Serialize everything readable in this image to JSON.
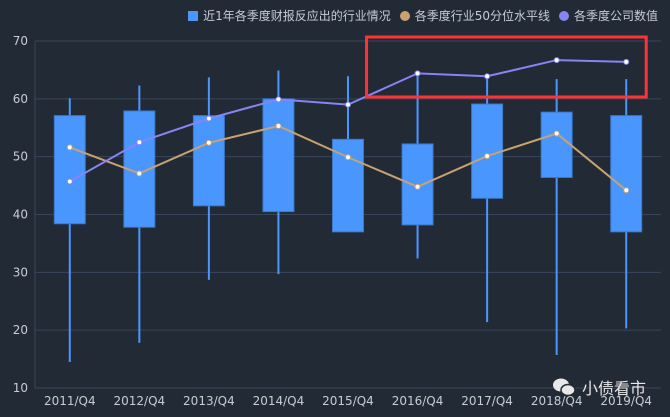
{
  "legend": {
    "box": "近1年各季度财报反应出的行业情况",
    "median": "各季度行业50分位水平线",
    "company": "各季度公司数值"
  },
  "watermark": "小债看市",
  "colors": {
    "background": "#222a36",
    "box": "#4a96ff",
    "median": "#c9a26f",
    "company": "#8585f5",
    "highlight": "#ff3333",
    "grid": "#39465a"
  },
  "chart_data": {
    "type": "boxplot",
    "categories": [
      "2011/Q4",
      "2012/Q4",
      "2013/Q4",
      "2014/Q4",
      "2015/Q4",
      "2016/Q4",
      "2017/Q4",
      "2018/Q4",
      "2019/Q4"
    ],
    "ylim": [
      10,
      70
    ],
    "yticks": [
      10,
      20,
      30,
      40,
      50,
      60,
      70
    ],
    "grid": true,
    "legend_position": "top-right",
    "boxes": [
      {
        "low": 14.5,
        "q1": 38.4,
        "q3": 57.1,
        "high": 60.1
      },
      {
        "low": 17.8,
        "q1": 37.8,
        "q3": 57.9,
        "high": 62.3
      },
      {
        "low": 28.7,
        "q1": 41.5,
        "q3": 57.1,
        "high": 63.7
      },
      {
        "low": 29.7,
        "q1": 40.5,
        "q3": 60.0,
        "high": 64.9
      },
      {
        "low": 37.0,
        "q1": 37.0,
        "q3": 53.0,
        "high": 63.9
      },
      {
        "low": 32.4,
        "q1": 38.2,
        "q3": 52.2,
        "high": 64.9
      },
      {
        "low": 21.4,
        "q1": 42.8,
        "q3": 59.1,
        "high": 63.9
      },
      {
        "low": 15.7,
        "q1": 46.4,
        "q3": 57.7,
        "high": 63.4
      },
      {
        "low": 20.3,
        "q1": 37.0,
        "q3": 57.1,
        "high": 63.4
      }
    ],
    "series": [
      {
        "name": "各季度行业50分位水平线",
        "values": [
          51.6,
          47.1,
          52.4,
          55.3,
          49.9,
          44.8,
          50.1,
          54.0,
          44.2
        ]
      },
      {
        "name": "各季度公司数值",
        "values": [
          45.7,
          52.5,
          56.6,
          59.9,
          59.0,
          64.4,
          63.9,
          66.7,
          66.4
        ]
      }
    ],
    "annotation": {
      "type": "highlight-rectangle",
      "from_category": "2016/Q4",
      "to_category": "2019/Q4"
    }
  }
}
